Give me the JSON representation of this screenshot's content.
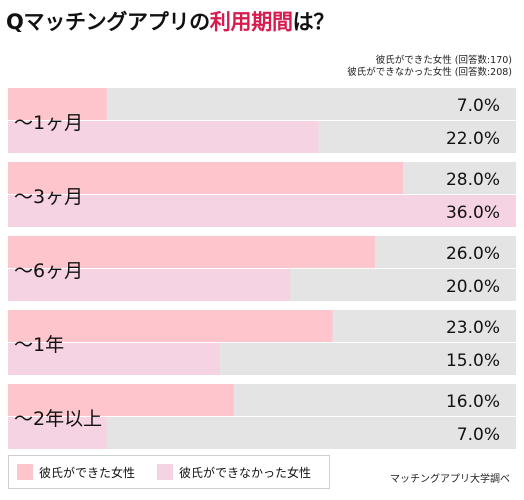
{
  "title": {
    "prefix": "Qマッチングアプリの",
    "highlight": "利用期間",
    "suffix": "は？"
  },
  "notes": {
    "line1": "彼氏ができた女性 (回答数:170)",
    "line2": "彼氏ができなかった女性 (回答数:208)"
  },
  "colors": {
    "series1": "#ffc5cd",
    "series2": "#f6d3e3",
    "track": "#e4e4e4",
    "accent": "#d81b4f"
  },
  "chart_data": {
    "type": "bar",
    "orientation": "horizontal",
    "categories": [
      "〜1ヶ月",
      "〜3ヶ月",
      "〜6ヶ月",
      "〜1年",
      "〜2年以上"
    ],
    "series": [
      {
        "name": "彼氏ができた女性",
        "values": [
          7.0,
          28.0,
          26.0,
          23.0,
          16.0
        ]
      },
      {
        "name": "彼氏ができなかった女性",
        "values": [
          22.0,
          36.0,
          20.0,
          15.0,
          7.0
        ]
      }
    ],
    "value_labels": [
      [
        "7.0%",
        "28.0%",
        "26.0%",
        "23.0%",
        "16.0%"
      ],
      [
        "22.0%",
        "36.0%",
        "20.0%",
        "15.0%",
        "7.0%"
      ]
    ],
    "xlim": [
      0,
      36
    ],
    "legend_position": "bottom-left",
    "grid": false
  },
  "legend": {
    "item1": "彼氏ができた女性",
    "item2": "彼氏ができなかった女性"
  },
  "source": "マッチングアプリ大学調べ"
}
